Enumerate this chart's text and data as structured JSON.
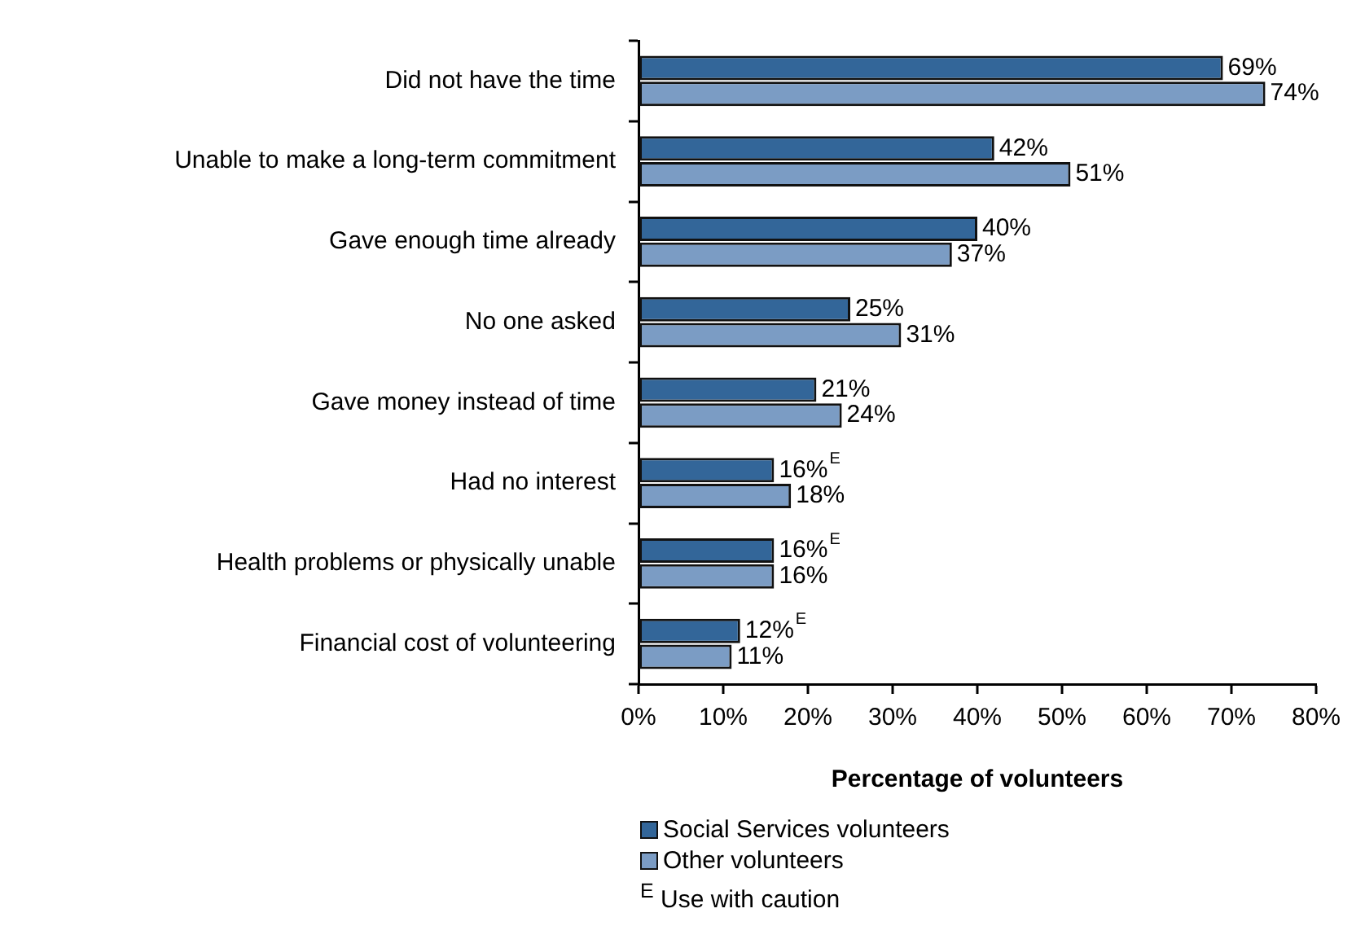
{
  "chart_data": {
    "type": "bar",
    "orientation": "horizontal",
    "xlabel": "Percentage of volunteers",
    "categories": [
      "Did not have the time",
      "Unable to make a long-term commitment",
      "Gave enough time already",
      "No one asked",
      "Gave money instead of time",
      "Had no interest",
      "Health problems or physically unable",
      "Financial cost of volunteering"
    ],
    "series": [
      {
        "name": "Social Services volunteers",
        "color": "#336699",
        "values": [
          69,
          42,
          40,
          25,
          21,
          16,
          16,
          12
        ],
        "value_labels": [
          "69%",
          "42%",
          "40%",
          "25%",
          "21%",
          "16%$^{E}$",
          "16%$^{E}$",
          "12%$^{E}$"
        ]
      },
      {
        "name": "Other volunteers",
        "color": "#7b9cc4",
        "values": [
          74,
          51,
          37,
          31,
          24,
          18,
          16,
          11
        ],
        "value_labels": [
          "74%",
          "51%",
          "37%",
          "31%",
          "24%",
          "18%",
          "16%",
          "11%"
        ]
      }
    ],
    "xlim": [
      0,
      80
    ],
    "xticks": [
      {
        "value": 0,
        "label": "0%"
      },
      {
        "value": 10,
        "label": "10%"
      },
      {
        "value": 20,
        "label": "20%"
      },
      {
        "value": 30,
        "label": "30%"
      },
      {
        "value": 40,
        "label": "40%"
      },
      {
        "value": 50,
        "label": "50%"
      },
      {
        "value": 60,
        "label": "60%"
      },
      {
        "value": 70,
        "label": "70%"
      },
      {
        "value": 80,
        "label": "80%"
      }
    ],
    "grid": false,
    "legend": "bottom",
    "annotations": [
      "$^{E}$ Use with caution"
    ]
  }
}
